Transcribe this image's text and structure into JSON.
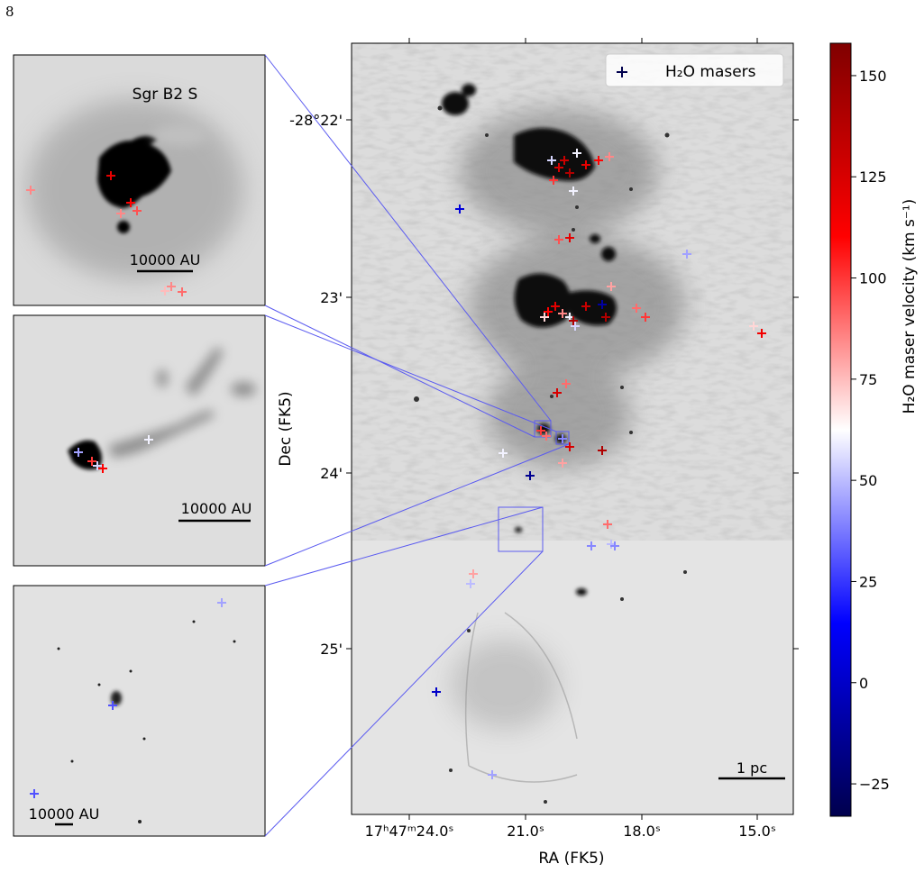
{
  "page_number": "8",
  "chart_data": {
    "type": "scatter",
    "title": "",
    "legend": {
      "label": "H₂O masers",
      "placement": "top-right"
    },
    "main": {
      "xlabel": "RA (FK5)",
      "ylabel": "Dec (FK5)",
      "x_ticks": [
        "17ʰ47ᵐ24.0ˢ",
        "21.0ˢ",
        "18.0ˢ",
        "15.0ˢ"
      ],
      "y_ticks": [
        "-28°22'",
        "23'",
        "24'",
        "25'"
      ],
      "scale_bar": "1 pc",
      "grid": false
    },
    "colorbar": {
      "label": "H₂O maser velocity (km s⁻¹)",
      "range": [
        -33,
        158
      ],
      "ticks": [
        "150",
        "125",
        "100",
        "75",
        "50",
        "25",
        "0",
        "−25"
      ],
      "colormap": "seismic",
      "colors": {
        "low": "#00004d",
        "mid": "#ffffff",
        "high": "#800000"
      }
    },
    "insets": [
      {
        "label": "Sgr B2 S",
        "scale_bar": "10000 AU"
      },
      {
        "label": "",
        "scale_bar": "10000 AU"
      },
      {
        "label": "",
        "scale_bar": "10000 AU"
      }
    ],
    "colors": {
      "zoom_lines": "#5b5bf0",
      "background": "#e6e6e6"
    }
  }
}
